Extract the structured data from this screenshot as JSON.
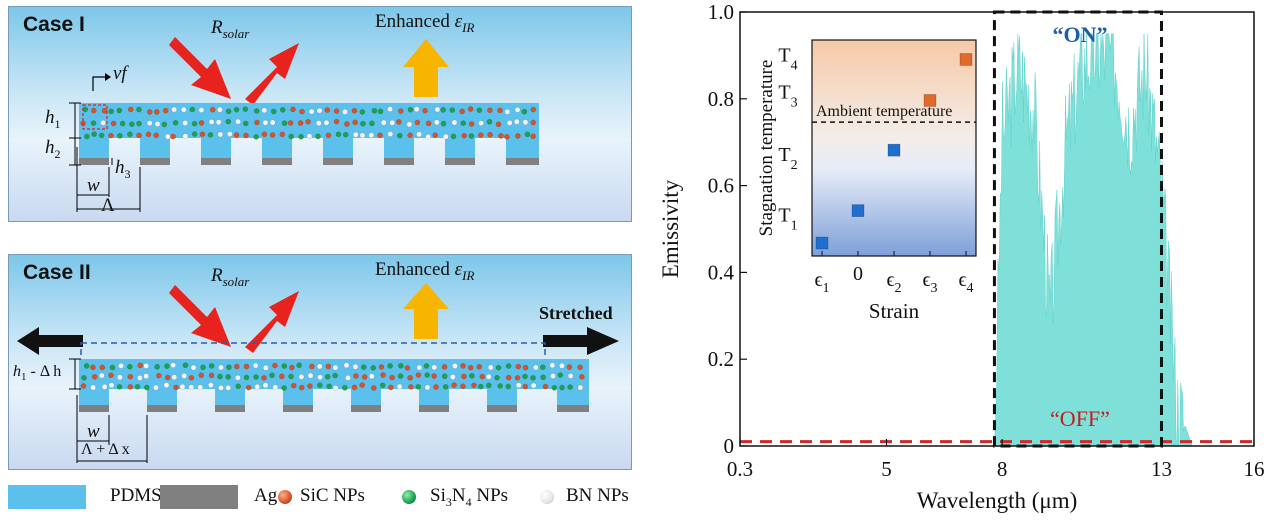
{
  "diagram": {
    "case1": {
      "title": "Case I",
      "r_symbol": "R",
      "r_sub": "solar",
      "enhanced_text": "Enhanced ",
      "eps_symbol": "ε",
      "eps_sub": "IR",
      "vf": "vf",
      "h1": "h",
      "h1_sub": "1",
      "h2": "h",
      "h2_sub": "2",
      "h3": "h",
      "h3_sub": "3",
      "w": "w",
      "period": "Λ"
    },
    "case2": {
      "title": "Case II",
      "r_symbol": "R",
      "r_sub": "solar",
      "enhanced_text": "Enhanced ",
      "eps_symbol": "ε",
      "eps_sub": "IR",
      "stretched": "Stretched",
      "h_label_a": "h",
      "h_label_sub": "1",
      "h_label_b": " - Δ h",
      "w": "w",
      "period_label": "Λ + Δ x"
    },
    "legend": {
      "pdms": "PDMS",
      "ag": "Ag",
      "sic": "SiC NPs",
      "si3n4_a": "Si",
      "si3n4_sub1": "3",
      "si3n4_b": "N",
      "si3n4_sub2": "4",
      "si3n4_c": " NPs",
      "bn": "BN NPs",
      "colors": {
        "pdms": "#5bc0ec",
        "ag": "#808080",
        "sic": "#d5532a",
        "si3n4": "#1ea050",
        "bn": "#f4f4f4"
      }
    }
  },
  "chart_data": {
    "type": "area",
    "xlabel": "Wavelength (μm)",
    "ylabel": "Emissivity",
    "x_ticks": [
      "0.3",
      "5",
      "8",
      "13",
      "16"
    ],
    "y_ticks": [
      "0",
      "0.2",
      "0.4",
      "0.6",
      "0.8",
      "1.0"
    ],
    "ylim": [
      0,
      1.0
    ],
    "series": [
      {
        "name": "ON",
        "label": "“ON”",
        "color": "#7fe0da",
        "x": [
          7.8,
          8.0,
          8.5,
          9.0,
          9.5,
          10.0,
          10.5,
          11.0,
          11.5,
          12.0,
          12.5,
          13.0,
          13.5,
          14.0
        ],
        "y": [
          0.0,
          0.72,
          0.88,
          0.78,
          0.3,
          0.7,
          0.88,
          0.92,
          0.9,
          0.74,
          0.88,
          0.6,
          0.1,
          0.0
        ]
      },
      {
        "name": "OFF",
        "label": "“OFF”",
        "color": "#cc2a2a",
        "dashed": true,
        "x": [
          0.3,
          5,
          8,
          13,
          16
        ],
        "y": [
          0.01,
          0.01,
          0.01,
          0.01,
          0.01
        ]
      }
    ],
    "annotation_dashed_box": {
      "x": [
        7.8,
        13.0
      ],
      "y": [
        0,
        1.0
      ]
    },
    "inset": {
      "type": "scatter",
      "xlabel": "Strain",
      "ylabel": "Stagnation temperature",
      "x_ticks": [
        "ϵ1",
        "0",
        "ϵ2",
        "ϵ3",
        "ϵ4"
      ],
      "y_ticks": [
        "T1",
        "T2",
        "T3",
        "T4"
      ],
      "ambient_label": "Ambient temperature",
      "points": [
        {
          "x": "ϵ1",
          "y": 0.06,
          "color": "#1f6fd0"
        },
        {
          "x": "0",
          "y": 0.21,
          "color": "#1f6fd0"
        },
        {
          "x": "ϵ2",
          "y": 0.49,
          "color": "#1f6fd0"
        },
        {
          "x": "ϵ3",
          "y": 0.72,
          "color": "#e06a2a"
        },
        {
          "x": "ϵ4",
          "y": 0.91,
          "color": "#e06a2a"
        }
      ],
      "ambient_level": 0.62
    }
  }
}
